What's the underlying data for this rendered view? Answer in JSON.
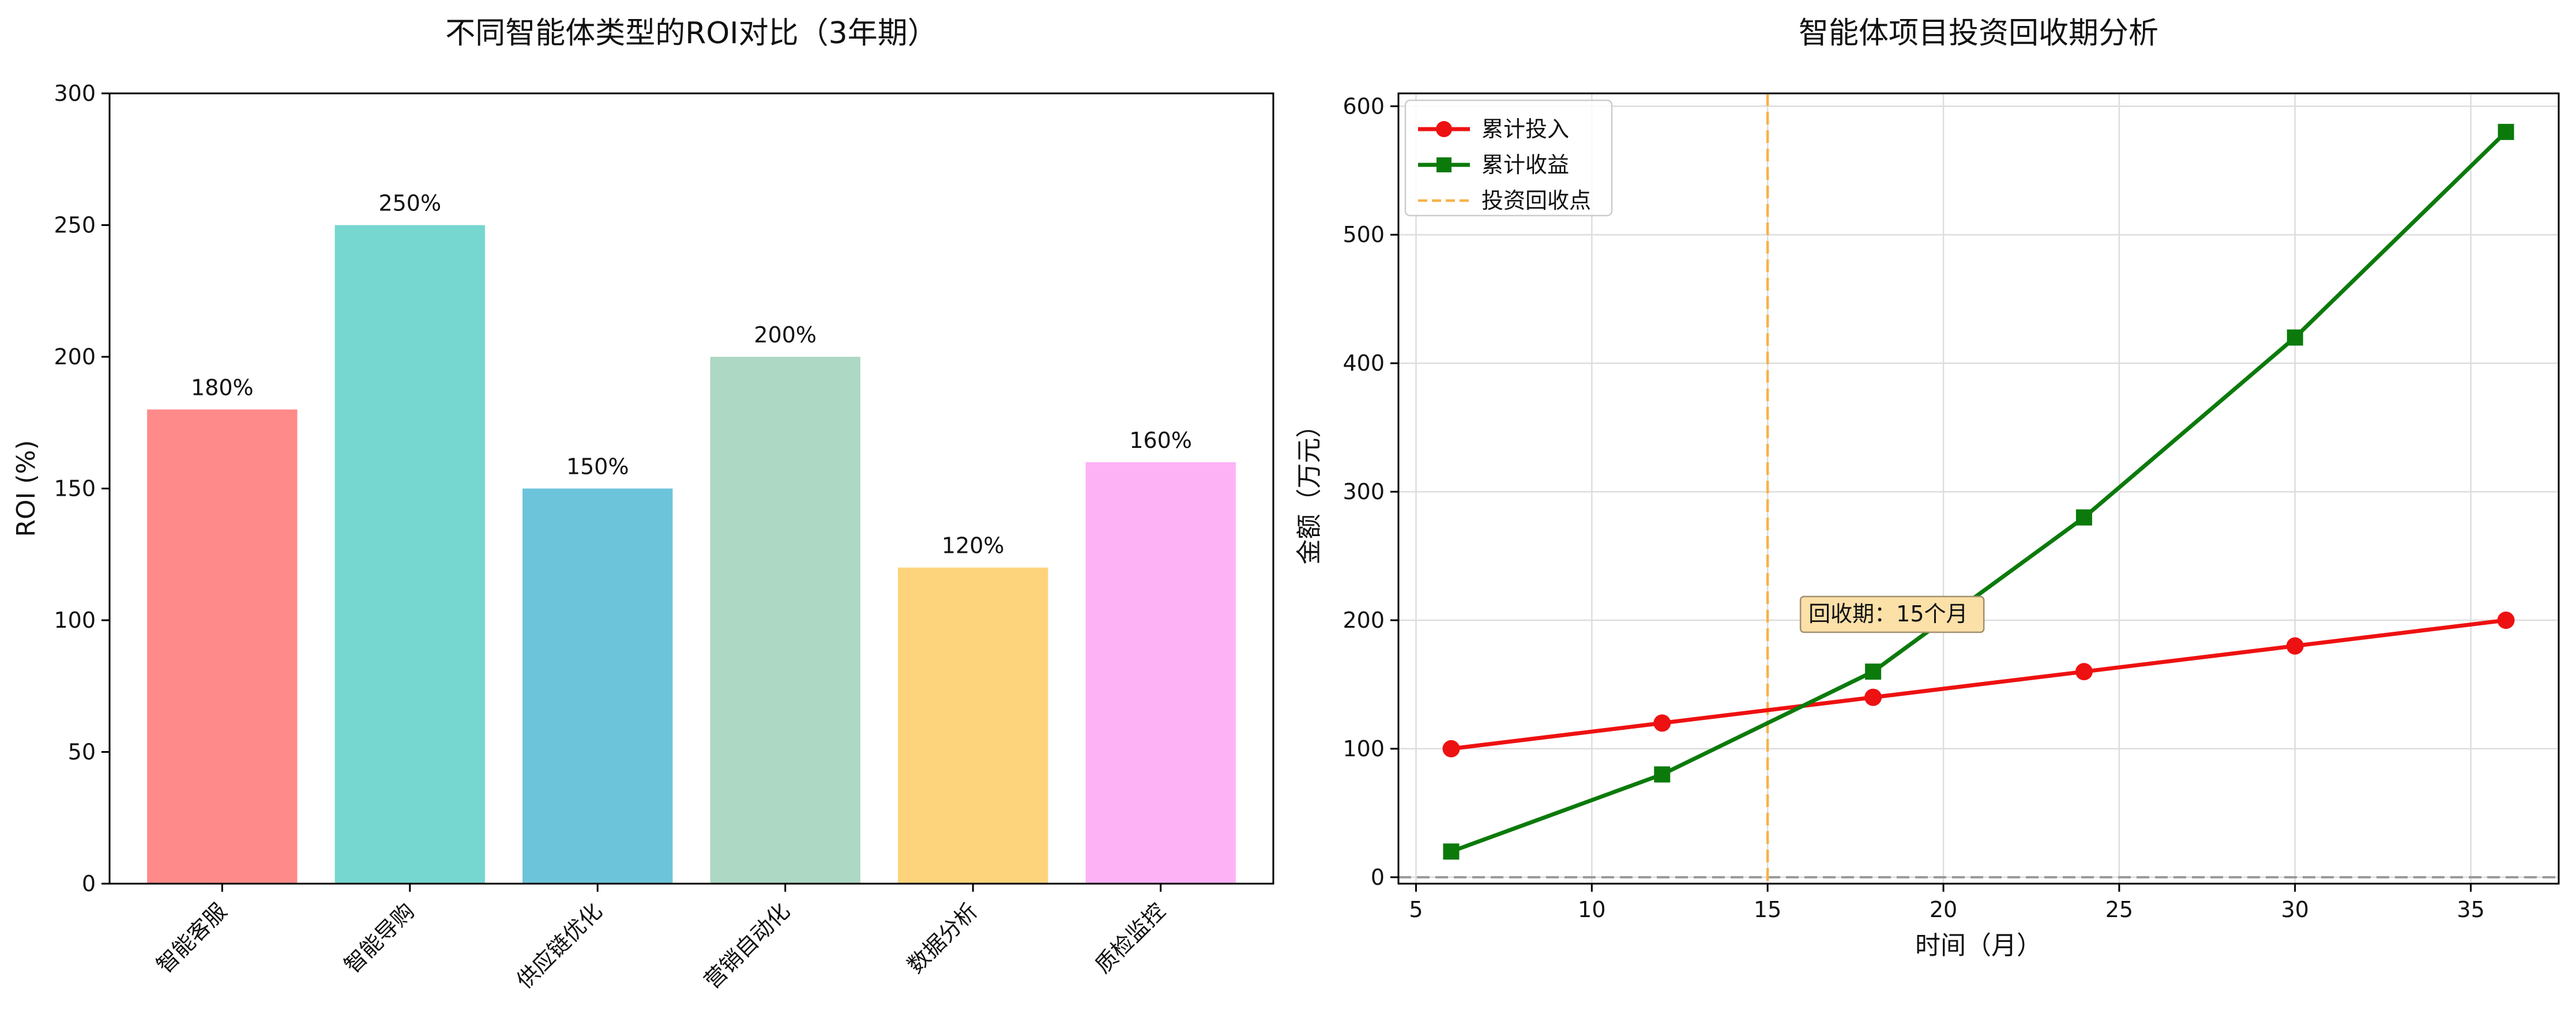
{
  "chart_data": [
    {
      "type": "bar",
      "title": "不同智能体类型的ROI对比（3年期）",
      "xlabel": "",
      "ylabel": "ROI (%)",
      "ylim": [
        0,
        300
      ],
      "yticks": [
        0,
        50,
        100,
        150,
        200,
        250,
        300
      ],
      "categories": [
        "智能客服",
        "智能导购",
        "供应链优化",
        "营销自动化",
        "数据分析",
        "质检监控"
      ],
      "values": [
        180,
        250,
        150,
        200,
        120,
        160
      ],
      "value_labels": [
        "180%",
        "250%",
        "150%",
        "200%",
        "120%",
        "160%"
      ],
      "colors": [
        "#FF8A8A",
        "#76D7D0",
        "#6CC4DB",
        "#ADD8C3",
        "#FDD47C",
        "#FDB2F6"
      ],
      "grid": false
    },
    {
      "type": "line",
      "title": "智能体项目投资回收期分析",
      "xlabel": "时间（月）",
      "ylabel": "金额（万元）",
      "xlim": [
        4.5,
        37.5
      ],
      "ylim": [
        -5,
        610
      ],
      "xticks": [
        5,
        10,
        15,
        20,
        25,
        30,
        35
      ],
      "yticks": [
        0,
        100,
        200,
        300,
        400,
        500,
        600
      ],
      "x": [
        6,
        12,
        18,
        24,
        30,
        36
      ],
      "series": [
        {
          "name": "累计投入",
          "values": [
            100,
            120,
            140,
            160,
            180,
            200
          ],
          "color": "#EE1111",
          "marker": "circle"
        },
        {
          "name": "累计收益",
          "values": [
            20,
            80,
            160,
            280,
            420,
            580
          ],
          "color": "#0B7A0B",
          "marker": "square"
        }
      ],
      "payback": {
        "name": "投资回收点",
        "x": 15,
        "color": "#F7B24A"
      },
      "baseline": {
        "y": 0,
        "color": "#999999"
      },
      "annotation": {
        "text": "回收期：15个月",
        "x": 16,
        "y": 205
      },
      "legend": "top-left",
      "grid": true
    }
  ]
}
